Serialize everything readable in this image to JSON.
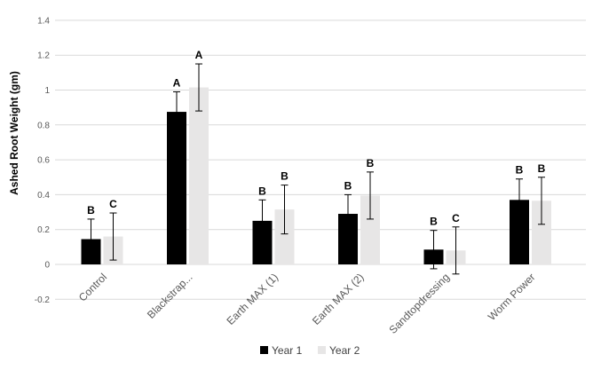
{
  "chart_data": {
    "type": "bar",
    "title": "",
    "xlabel": "",
    "ylabel": "Ashed Root Weight (gm)",
    "ylim": [
      -0.2,
      1.4
    ],
    "yticks": [
      "-0.2",
      "0",
      "0.2",
      "0.4",
      "0.6",
      "0.8",
      "1",
      "1.2",
      "1.4"
    ],
    "ytick_values": [
      -0.2,
      0,
      0.2,
      0.4,
      0.6,
      0.8,
      1.0,
      1.2,
      1.4
    ],
    "grid": true,
    "legend_position": "bottom",
    "categories": [
      "Control",
      "Blackstrap...",
      "Earth MAX (1)",
      "Earth MAX (2)",
      "Sandtopdressing",
      "Worm Power"
    ],
    "series": [
      {
        "name": "Year 1",
        "color": "#000000",
        "values": [
          0.145,
          0.875,
          0.25,
          0.29,
          0.085,
          0.37
        ],
        "error": [
          0.115,
          0.115,
          0.12,
          0.11,
          0.11,
          0.12
        ],
        "letters": [
          "B",
          "A",
          "B",
          "B",
          "B",
          "B"
        ]
      },
      {
        "name": "Year 2",
        "color": "#e7e6e6",
        "values": [
          0.16,
          1.015,
          0.315,
          0.395,
          0.08,
          0.365
        ],
        "error": [
          0.135,
          0.135,
          0.14,
          0.135,
          0.135,
          0.135
        ],
        "letters": [
          "C",
          "A",
          "B",
          "B",
          "C",
          "B"
        ]
      }
    ],
    "colors": {
      "gridline": "#d9d9d9",
      "error_bar": "#000000",
      "axis_text": "#595959"
    }
  }
}
